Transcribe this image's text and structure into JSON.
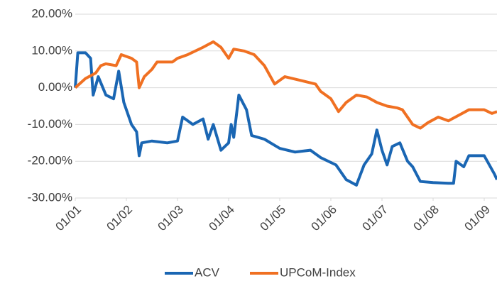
{
  "chart_data": {
    "type": "line",
    "xlim": [
      0,
      8.25
    ],
    "xticks": [
      {
        "value": 0,
        "label": "01/01"
      },
      {
        "value": 1,
        "label": "01/02"
      },
      {
        "value": 2,
        "label": "01/03"
      },
      {
        "value": 3,
        "label": "01/04"
      },
      {
        "value": 4,
        "label": "01/05"
      },
      {
        "value": 5,
        "label": "01/06"
      },
      {
        "value": 6,
        "label": "01/07"
      },
      {
        "value": 7,
        "label": "01/08"
      },
      {
        "value": 8,
        "label": "01/09"
      }
    ],
    "ylim": [
      -30,
      20
    ],
    "yticks": [
      {
        "value": -30,
        "label": "-30.00%"
      },
      {
        "value": -20,
        "label": "-20.00%"
      },
      {
        "value": -10,
        "label": "-10.00%"
      },
      {
        "value": 0,
        "label": "0.00%"
      },
      {
        "value": 10,
        "label": "10.00%"
      },
      {
        "value": 20,
        "label": "20.00%"
      }
    ],
    "grid": true,
    "legend": "bottom",
    "series": [
      {
        "name": "ACV",
        "color": "#1a66b3",
        "x": [
          0,
          0.05,
          0.2,
          0.3,
          0.35,
          0.45,
          0.6,
          0.75,
          0.85,
          0.95,
          1.1,
          1.2,
          1.25,
          1.3,
          1.5,
          1.8,
          2.0,
          2.1,
          2.3,
          2.5,
          2.6,
          2.7,
          2.85,
          3.0,
          3.05,
          3.1,
          3.2,
          3.35,
          3.45,
          3.7,
          4.0,
          4.3,
          4.6,
          4.8,
          5.1,
          5.3,
          5.5,
          5.65,
          5.8,
          5.9,
          6.0,
          6.1,
          6.2,
          6.35,
          6.5,
          6.6,
          6.75,
          7.0,
          7.3,
          7.4,
          7.45,
          7.6,
          7.7,
          8.0,
          8.2,
          8.25
        ],
        "values": [
          0,
          9.5,
          9.5,
          8,
          -2,
          3,
          -2,
          -3,
          4.5,
          -4,
          -10,
          -12,
          -18.5,
          -15,
          -14.5,
          -15,
          -14.5,
          -8,
          -10,
          -8.5,
          -14,
          -10,
          -17,
          -15,
          -10,
          -13.5,
          -2,
          -6,
          -13,
          -14,
          -16.5,
          -17.5,
          -17,
          -19,
          -21,
          -25,
          -26.5,
          -21,
          -18,
          -11.5,
          -17,
          -21,
          -16,
          -15,
          -20,
          -21.5,
          -25.5,
          -25.8,
          -26,
          -26,
          -20,
          -21.5,
          -18.5,
          -18.5,
          -23.5,
          -25
        ]
      },
      {
        "name": "UPCoM-Index",
        "color": "#f07022",
        "x": [
          0,
          0.2,
          0.4,
          0.5,
          0.6,
          0.8,
          0.9,
          1.1,
          1.2,
          1.25,
          1.35,
          1.5,
          1.6,
          1.9,
          2.0,
          2.2,
          2.5,
          2.7,
          2.85,
          3.0,
          3.1,
          3.3,
          3.5,
          3.7,
          3.8,
          3.9,
          4.1,
          4.4,
          4.7,
          4.8,
          5.0,
          5.15,
          5.3,
          5.5,
          5.7,
          5.9,
          6.1,
          6.3,
          6.4,
          6.6,
          6.75,
          6.9,
          7.1,
          7.3,
          7.5,
          7.7,
          8.0,
          8.15,
          8.25
        ],
        "values": [
          0,
          2.5,
          4,
          6,
          6.5,
          6,
          9,
          8,
          7,
          0,
          3,
          5,
          7,
          7,
          8,
          9,
          11,
          12.5,
          11,
          8,
          10.5,
          10,
          9,
          6,
          3.5,
          1,
          3,
          2,
          1,
          -1,
          -3,
          -6.5,
          -4,
          -2,
          -2.5,
          -4,
          -5,
          -5.5,
          -6,
          -10,
          -11,
          -9.5,
          -8,
          -9,
          -7.5,
          -6,
          -6,
          -7,
          -6.5
        ]
      }
    ]
  }
}
